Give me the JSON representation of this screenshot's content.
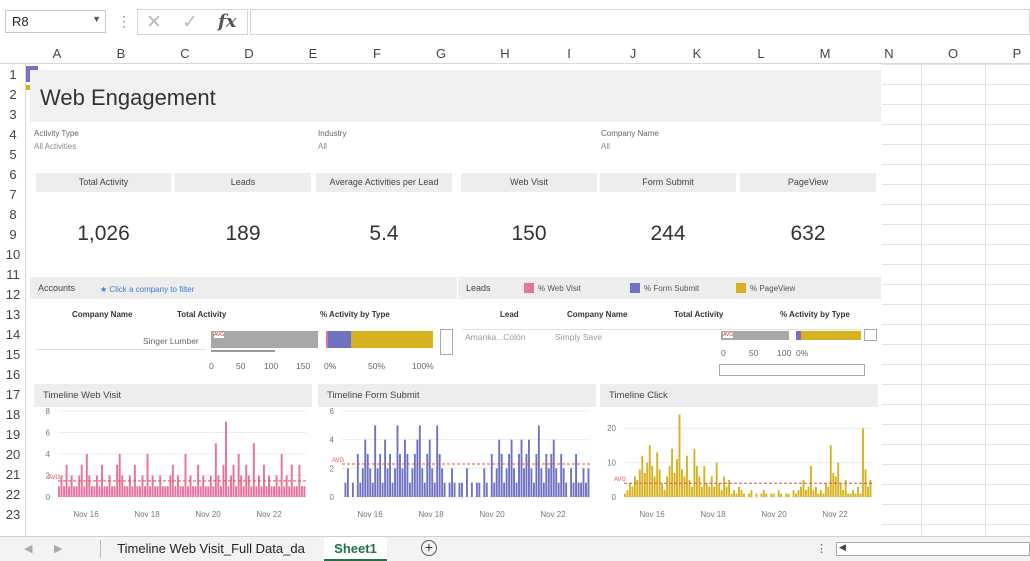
{
  "name_box": "R8",
  "formula_icons": {
    "cancel": "✕",
    "enter": "✓",
    "fx": "fx"
  },
  "columns": [
    "A",
    "B",
    "C",
    "D",
    "E",
    "F",
    "G",
    "H",
    "I",
    "J",
    "K",
    "L",
    "M",
    "N",
    "O",
    "P"
  ],
  "rows": [
    "1",
    "2",
    "3",
    "4",
    "5",
    "6",
    "7",
    "8",
    "9",
    "10",
    "11",
    "12",
    "13",
    "14",
    "15",
    "16",
    "17",
    "18",
    "19",
    "20",
    "21",
    "22",
    "23"
  ],
  "dashboard": {
    "title": "Web Engagement",
    "accent_colors": [
      "#7b6fc9",
      "#d6b21f"
    ],
    "filters": [
      {
        "label": "Activity Type",
        "value": "All Activities"
      },
      {
        "label": "Industry",
        "value": "All"
      },
      {
        "label": "Company Name",
        "value": "All"
      }
    ],
    "kpis": [
      {
        "label": "Total Activity",
        "value": "1,026"
      },
      {
        "label": "Leads",
        "value": "189"
      },
      {
        "label": "Average Activities per Lead",
        "value": "5.4"
      },
      {
        "label": "Web Visit",
        "value": "150"
      },
      {
        "label": "Form Submit",
        "value": "244"
      },
      {
        "label": "PageView",
        "value": "632"
      }
    ],
    "accounts": {
      "title": "Accounts",
      "hint": "★ Click a company to filter",
      "headers": [
        "Company Name",
        "Total Activity",
        "% Activity by Type"
      ],
      "row_name": "Singer Lumber",
      "avg_label": "AVG",
      "activity_axis": [
        "0",
        "50",
        "100",
        "150"
      ],
      "pct_axis": [
        "0%",
        "50%",
        "100%"
      ]
    },
    "leads": {
      "title": "Leads",
      "legend": [
        {
          "label": "% Web Visit",
          "color": "#e8739a"
        },
        {
          "label": "% Form Submit",
          "color": "#6f72c1"
        },
        {
          "label": "% PageView",
          "color": "#d6b21f"
        }
      ],
      "headers": [
        "Lead",
        "Company Name",
        "Total Activity",
        "% Activity by Type"
      ],
      "row_lead": "Amanka...Colón",
      "row_company": "Simply Save",
      "avg_label": "AVG",
      "activity_axis": [
        "0",
        "50",
        "100"
      ],
      "pct_axis": [
        "0%"
      ]
    }
  },
  "chart_data": [
    {
      "type": "bar",
      "title": "Timeline Web Visit",
      "color": "#e8739a",
      "ylim": [
        0,
        8
      ],
      "yticks": [
        "8",
        "6",
        "4",
        "2",
        "0"
      ],
      "xticks": [
        "Nov 16",
        "Nov 18",
        "Nov 20",
        "Nov 22"
      ],
      "avg_label": "AVG",
      "avg": 1.5,
      "values": [
        1,
        2,
        1,
        3,
        1,
        2,
        1,
        1,
        2,
        3,
        1,
        4,
        2,
        1,
        1,
        2,
        1,
        3,
        1,
        1,
        2,
        1,
        1,
        3,
        4,
        2,
        1,
        1,
        2,
        1,
        3,
        1,
        1,
        2,
        1,
        4,
        1,
        2,
        1,
        1,
        2,
        1,
        1,
        1,
        2,
        3,
        1,
        2,
        1,
        1,
        4,
        1,
        2,
        1,
        1,
        3,
        1,
        2,
        1,
        1,
        2,
        1,
        5,
        2,
        1,
        3,
        7,
        1,
        2,
        3,
        1,
        4,
        2,
        1,
        3,
        2,
        1,
        5,
        1,
        2,
        1,
        3,
        1,
        2,
        1,
        1,
        2,
        1,
        4,
        1,
        2,
        1,
        3,
        1,
        1,
        3,
        1,
        1
      ]
    },
    {
      "type": "bar",
      "title": "Timeline Form Submit",
      "color": "#6f72c1",
      "ylim": [
        0,
        6
      ],
      "yticks": [
        "6",
        "4",
        "2",
        "0"
      ],
      "xticks": [
        "Nov 16",
        "Nov 18",
        "Nov 20",
        "Nov 22"
      ],
      "avg_label": "AVG",
      "avg": 2.3,
      "values": [
        0,
        1,
        2,
        0,
        1,
        0,
        3,
        1,
        2,
        4,
        3,
        2,
        1,
        5,
        2,
        3,
        1,
        4,
        2,
        3,
        1,
        2,
        5,
        3,
        2,
        4,
        3,
        1,
        2,
        3,
        4,
        5,
        2,
        1,
        3,
        4,
        2,
        1,
        5,
        3,
        2,
        1,
        0,
        1,
        2,
        1,
        0,
        1,
        1,
        0,
        2,
        0,
        1,
        0,
        1,
        1,
        0,
        2,
        1,
        0,
        3,
        1,
        2,
        4,
        3,
        1,
        2,
        3,
        4,
        2,
        1,
        3,
        4,
        2,
        3,
        4,
        2,
        1,
        3,
        5,
        2,
        1,
        3,
        2,
        3,
        4,
        2,
        1,
        3,
        2,
        1,
        0,
        2,
        1,
        3,
        1,
        1,
        2,
        1,
        2
      ]
    },
    {
      "type": "bar",
      "title": "Timeline Click",
      "color": "#d6b21f",
      "ylim": [
        0,
        25
      ],
      "yticks": [
        "20",
        "10",
        "0"
      ],
      "xticks": [
        "Nov 16",
        "Nov 18",
        "Nov 20",
        "Nov 22"
      ],
      "avg_label": "AVG",
      "avg": 4,
      "values": [
        1,
        2,
        4,
        3,
        6,
        5,
        8,
        12,
        7,
        10,
        15,
        9,
        6,
        13,
        8,
        4,
        2,
        6,
        9,
        14,
        7,
        11,
        24,
        8,
        6,
        12,
        5,
        3,
        14,
        9,
        6,
        3,
        9,
        4,
        3,
        6,
        3,
        10,
        4,
        2,
        6,
        3,
        5,
        1,
        2,
        1,
        3,
        2,
        1,
        0,
        1,
        2,
        0,
        1,
        0,
        1,
        2,
        1,
        0,
        1,
        1,
        0,
        2,
        1,
        0,
        1,
        1,
        0,
        2,
        1,
        2,
        3,
        5,
        2,
        3,
        9,
        2,
        3,
        1,
        2,
        1,
        4,
        3,
        15,
        7,
        6,
        10,
        4,
        2,
        5,
        1,
        1,
        2,
        1,
        3,
        1,
        20,
        8,
        3,
        5
      ]
    }
  ],
  "sheet_tabs": {
    "tabs": [
      "Timeline Web Visit_Full Data_da",
      "Sheet1"
    ],
    "active": "Sheet1",
    "add_label": "+"
  }
}
